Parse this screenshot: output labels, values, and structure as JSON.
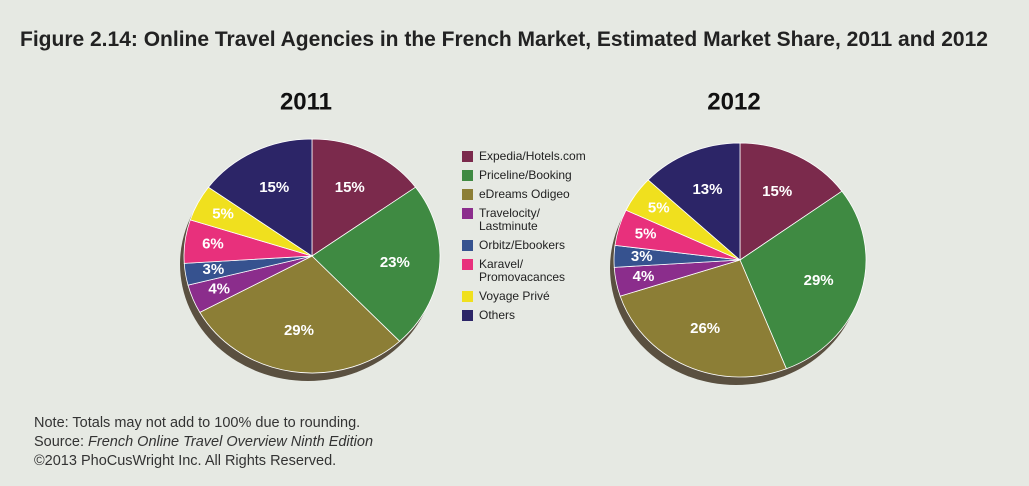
{
  "chart_data": {
    "type": "pie",
    "title": "Figure 2.14: Online Travel Agencies in the French Market, Estimated Market Share, 2011 and 2012",
    "categories": [
      "Expedia/Hotels.com",
      "Priceline/Booking",
      "eDreams Odigeo",
      "Travelocity/ Lastminute",
      "Orbitz/Ebookers",
      "Karavel/ Promovacances",
      "Voyage Privé",
      "Others"
    ],
    "colors": [
      "#7b2a4c",
      "#3f8a42",
      "#8c7e36",
      "#8b2d8c",
      "#36528f",
      "#e8307c",
      "#f0e01e",
      "#2c2567"
    ],
    "series": [
      {
        "name": "2011",
        "values": [
          15,
          23,
          29,
          4,
          3,
          6,
          5,
          15
        ],
        "value_labels": [
          "15%",
          "23%",
          "29%",
          "4%",
          "3%",
          "6%",
          "5%",
          "15%"
        ]
      },
      {
        "name": "2012",
        "values": [
          15,
          29,
          26,
          4,
          3,
          5,
          5,
          13
        ],
        "value_labels": [
          "15%",
          "29%",
          "26%",
          "4%",
          "3%",
          "5%",
          "5%",
          "13%"
        ]
      }
    ],
    "note": "Note: Totals may not add to 100% due to rounding.",
    "source_label": "Source:",
    "source": "French Online Travel Overview Ninth Edition",
    "copyright": "©2013 PhoCusWright Inc. All Rights Reserved."
  }
}
